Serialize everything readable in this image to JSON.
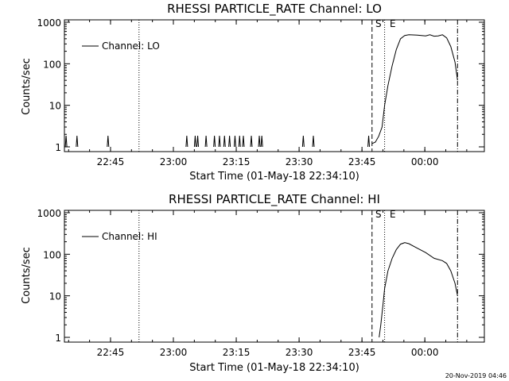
{
  "footer_timestamp": "20-Nov-2019 04:46",
  "chart_data": [
    {
      "type": "line",
      "title": "RHESSI PARTICLE_RATE Channel: LO",
      "xlabel": "Start Time (01-May-18 22:34:10)",
      "ylabel": "Counts/sec",
      "yscale": "log",
      "ylim": [
        1,
        1000
      ],
      "xlim_minutes": [
        -0.2,
        100
      ],
      "x_tick_labels": [
        "22:45",
        "23:00",
        "23:15",
        "23:30",
        "23:45",
        "00:00"
      ],
      "x_tick_minutes": [
        10.8,
        25.8,
        40.8,
        55.8,
        70.8,
        85.8
      ],
      "y_tick_labels": [
        "1",
        "10",
        "100",
        "1000"
      ],
      "y_tick_values": [
        1,
        10,
        100,
        1000
      ],
      "legend": {
        "label": "Channel: LO",
        "position": "top-left"
      },
      "flags": {
        "S": "S",
        "E": "E"
      },
      "vlines": {
        "dotted_left": 17.6,
        "dashed_S": 73.2,
        "dotted_E": 76.2,
        "dashdot": 93.6
      },
      "series": [
        {
          "spikes_minutes": [
            0.2,
            2.8,
            10.2,
            29.0,
            31.0,
            31.6,
            33.6,
            35.6,
            36.8,
            38.0,
            39.2,
            40.5,
            41.6,
            42.5,
            44.4,
            46.3,
            46.9,
            56.8,
            59.2,
            72.4
          ],
          "points": [
            [
              73.2,
              1.2
            ],
            [
              74.0,
              1.3
            ],
            [
              74.8,
              1.8
            ],
            [
              75.6,
              3.0
            ],
            [
              76.2,
              10
            ],
            [
              77.0,
              30
            ],
            [
              78.0,
              90
            ],
            [
              79.0,
              220
            ],
            [
              80.0,
              400
            ],
            [
              81.0,
              480
            ],
            [
              82.0,
              500
            ],
            [
              84.0,
              490
            ],
            [
              86.0,
              470
            ],
            [
              87.0,
              500
            ],
            [
              88.0,
              460
            ],
            [
              89.0,
              470
            ],
            [
              90.0,
              500
            ],
            [
              91.0,
              420
            ],
            [
              92.0,
              260
            ],
            [
              93.0,
              110
            ],
            [
              93.6,
              40
            ]
          ]
        }
      ]
    },
    {
      "type": "line",
      "title": "RHESSI PARTICLE_RATE Channel: HI",
      "xlabel": "Start Time (01-May-18 22:34:10)",
      "ylabel": "Counts/sec",
      "yscale": "log",
      "ylim": [
        1,
        1000
      ],
      "xlim_minutes": [
        -0.2,
        100
      ],
      "x_tick_labels": [
        "22:45",
        "23:00",
        "23:15",
        "23:30",
        "23:45",
        "00:00"
      ],
      "x_tick_minutes": [
        10.8,
        25.8,
        40.8,
        55.8,
        70.8,
        85.8
      ],
      "y_tick_labels": [
        "1",
        "10",
        "100",
        "1000"
      ],
      "y_tick_values": [
        1,
        10,
        100,
        1000
      ],
      "legend": {
        "label": "Channel: HI",
        "position": "top-left"
      },
      "flags": {
        "S": "S",
        "E": "E"
      },
      "vlines": {
        "dotted_left": 17.6,
        "dashed_S": 73.2,
        "dotted_E": 76.2,
        "dashdot": 93.6
      },
      "series": [
        {
          "spikes_minutes": [],
          "points": [
            [
              74.9,
              1.0
            ],
            [
              75.3,
              2
            ],
            [
              75.8,
              6
            ],
            [
              76.2,
              15
            ],
            [
              77.0,
              40
            ],
            [
              78.0,
              80
            ],
            [
              79.0,
              130
            ],
            [
              80.0,
              175
            ],
            [
              81.0,
              190
            ],
            [
              82.0,
              180
            ],
            [
              84.0,
              140
            ],
            [
              86.0,
              110
            ],
            [
              88.0,
              80
            ],
            [
              90.0,
              70
            ],
            [
              91.0,
              60
            ],
            [
              92.0,
              40
            ],
            [
              93.0,
              20
            ],
            [
              93.6,
              10
            ]
          ]
        }
      ]
    }
  ]
}
